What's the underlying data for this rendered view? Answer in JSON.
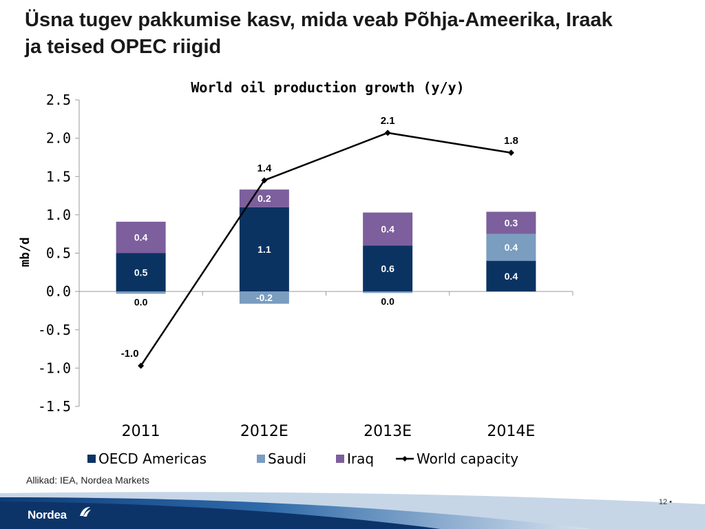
{
  "slide": {
    "title_lines": [
      "Üsna tugev pakkumise kasv, mida veab Põhja-Ameerika, Iraak",
      "ja teised OPEC riigid"
    ],
    "source": "Allikad: IEA, Nordea Markets",
    "page_number": "12",
    "logo_text": "Nordea"
  },
  "colors": {
    "oecd_americas": "#0b3362",
    "saudi": "#7a9dc0",
    "iraq": "#7c5f9c",
    "line": "#000000"
  },
  "chart_data": {
    "type": "bar",
    "title": "World oil production growth (y/y)",
    "ylabel": "mb/d",
    "ylim": [
      -1.5,
      2.5
    ],
    "yticks": [
      "2.5",
      "2.0",
      "1.5",
      "1.0",
      "0.5",
      "0.0",
      "-0.5",
      "-1.0",
      "-1.5"
    ],
    "ytick_values": [
      2.5,
      2.0,
      1.5,
      1.0,
      0.5,
      0.0,
      -0.5,
      -1.0,
      -1.5
    ],
    "categories": [
      "2011",
      "2012E",
      "2013E",
      "2014E"
    ],
    "stacked": true,
    "series": [
      {
        "name": "OECD Americas",
        "type": "bar",
        "values": [
          0.5,
          1.1,
          0.6,
          0.4
        ],
        "labels": [
          "0.5",
          "1.1",
          "0.6",
          "0.4"
        ]
      },
      {
        "name": "Saudi",
        "type": "bar",
        "values": [
          -0.03,
          -0.16,
          -0.02,
          0.35
        ],
        "labels": [
          "0.0",
          "-0.2",
          "0.0",
          "0.4"
        ]
      },
      {
        "name": "Iraq",
        "type": "bar",
        "values": [
          0.41,
          0.23,
          0.43,
          0.29
        ],
        "labels": [
          "0.4",
          "0.2",
          "0.4",
          "0.3"
        ]
      },
      {
        "name": "World capacity",
        "type": "line",
        "values": [
          -0.97,
          1.45,
          2.07,
          1.81
        ],
        "labels": [
          "-1.0",
          "1.4",
          "2.1",
          "1.8"
        ]
      }
    ],
    "legend_position": "bottom",
    "grid": false
  }
}
